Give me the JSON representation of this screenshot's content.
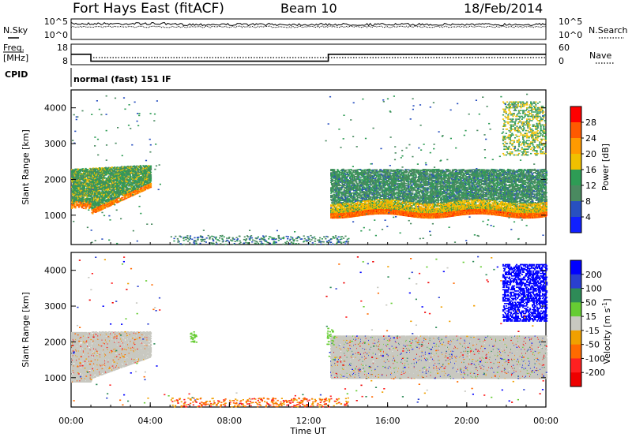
{
  "header": {
    "station": "Fort Hays East (fitACF)",
    "beam": "Beam 10",
    "date": "18/Feb/2014"
  },
  "noise_panel": {
    "left_label": "N.Sky",
    "right_label": "N.Search",
    "left_ticks": [
      "10^5",
      "10^0"
    ],
    "right_ticks": [
      "10^5",
      "10^0"
    ]
  },
  "freq_panel": {
    "left_label_1": "Freq.",
    "left_label_2": "[MHz]",
    "right_label": "Nave",
    "left_ticks": [
      "18",
      "8"
    ],
    "right_ticks": [
      "60",
      "0"
    ],
    "freq_steps": [
      {
        "t_hours": 0,
        "mhz": 14
      },
      {
        "t_hours": 1,
        "mhz": 10
      },
      {
        "t_hours": 13,
        "mhz": 14
      },
      {
        "t_hours": 24,
        "mhz": 14
      }
    ]
  },
  "cpid": {
    "label": "CPID",
    "value": "normal (fast) 151 IF"
  },
  "power_panel": {
    "ylabel": "Slant Range [km]",
    "yticks": [
      "4000",
      "3000",
      "2000",
      "1000"
    ],
    "colorbar_label": "Power [dB]",
    "colorbar_ticks": [
      "28",
      "24",
      "20",
      "16",
      "12",
      "8",
      "4"
    ],
    "colorbar_colors": [
      "#ff0000",
      "#ff5a00",
      "#ff9a00",
      "#f0c000",
      "#2e9c55",
      "#4a8a60",
      "#2850c0",
      "#1020ff"
    ]
  },
  "velocity_panel": {
    "ylabel": "Slant Range [km]",
    "yticks": [
      "4000",
      "3000",
      "2000",
      "1000"
    ],
    "colorbar_label": "Velocity [m s",
    "colorbar_sup": "-1",
    "colorbar_ticks": [
      "200",
      "100",
      "50",
      "15",
      "-15",
      "-50",
      "-100",
      "-200"
    ],
    "colorbar_colors": [
      "#0000ff",
      "#2a3fd0",
      "#2e8b57",
      "#66cc33",
      "#c8c8c0",
      "#f0a000",
      "#ff6a00",
      "#ff2020",
      "#ee0000"
    ]
  },
  "xaxis": {
    "title": "Time UT",
    "ticks": [
      "00:00",
      "04:00",
      "08:00",
      "12:00",
      "16:00",
      "20:00",
      "00:00"
    ]
  },
  "chart_data": [
    {
      "type": "heatmap",
      "title": "Power",
      "xlabel": "Time UT",
      "ylabel": "Slant Range [km]",
      "xlim": [
        0,
        24
      ],
      "ylim": [
        180,
        4500
      ],
      "colorbar": {
        "label": "Power [dB]",
        "range": [
          0,
          32
        ]
      },
      "regions": [
        {
          "t": [
            0,
            1
          ],
          "r": [
            1100,
            2300
          ],
          "level_db": 14
        },
        {
          "t": [
            1,
            4
          ],
          "r": [
            1050,
            2500
          ],
          "level_db": 16
        },
        {
          "t": [
            13,
            24
          ],
          "r": [
            1000,
            1300
          ],
          "level_db": 26
        },
        {
          "t": [
            13,
            24
          ],
          "r": [
            1300,
            2200
          ],
          "level_db": 10
        },
        {
          "t": [
            22,
            24
          ],
          "r": [
            2800,
            4200
          ],
          "level_db": 14
        }
      ]
    },
    {
      "type": "heatmap",
      "title": "Velocity",
      "xlabel": "Time UT",
      "ylabel": "Slant Range [km]",
      "xlim": [
        0,
        24
      ],
      "ylim": [
        180,
        4500
      ],
      "colorbar": {
        "label": "Velocity [m s-1]",
        "range": [
          -250,
          250
        ]
      },
      "regions": [
        {
          "t": [
            0,
            4
          ],
          "r": [
            900,
            2400
          ],
          "velocity": 0
        },
        {
          "t": [
            13,
            24
          ],
          "r": [
            1000,
            2300
          ],
          "velocity": 0
        },
        {
          "t": [
            22,
            24
          ],
          "r": [
            2600,
            4200
          ],
          "velocity": 220
        }
      ]
    }
  ]
}
